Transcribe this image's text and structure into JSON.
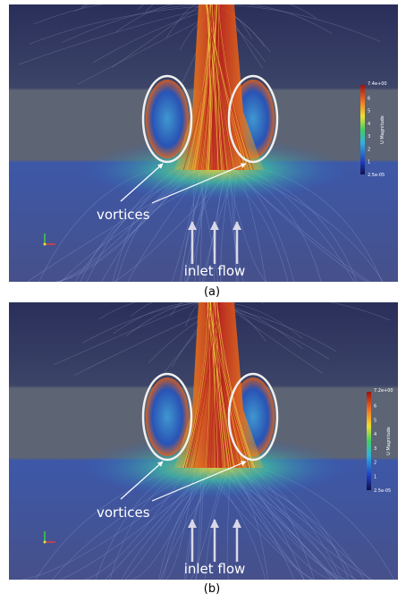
{
  "panels": [
    {
      "label": "(a)",
      "vortices": "vortices",
      "inlet": "inlet flow",
      "colorbar": {
        "title": "U Magnitude",
        "max": "7.4e+00",
        "ticks": [
          "6",
          "5",
          "4",
          "3",
          "2",
          "1"
        ],
        "min": "2.5e-05"
      }
    },
    {
      "label": "(b)",
      "vortices": "vortices",
      "inlet": "inlet flow",
      "colorbar": {
        "title": "U Magnitude",
        "max": "7.2e+00",
        "ticks": [
          "6",
          "5",
          "4",
          "3",
          "2",
          "1"
        ],
        "min": "2.5e-05"
      }
    }
  ]
}
